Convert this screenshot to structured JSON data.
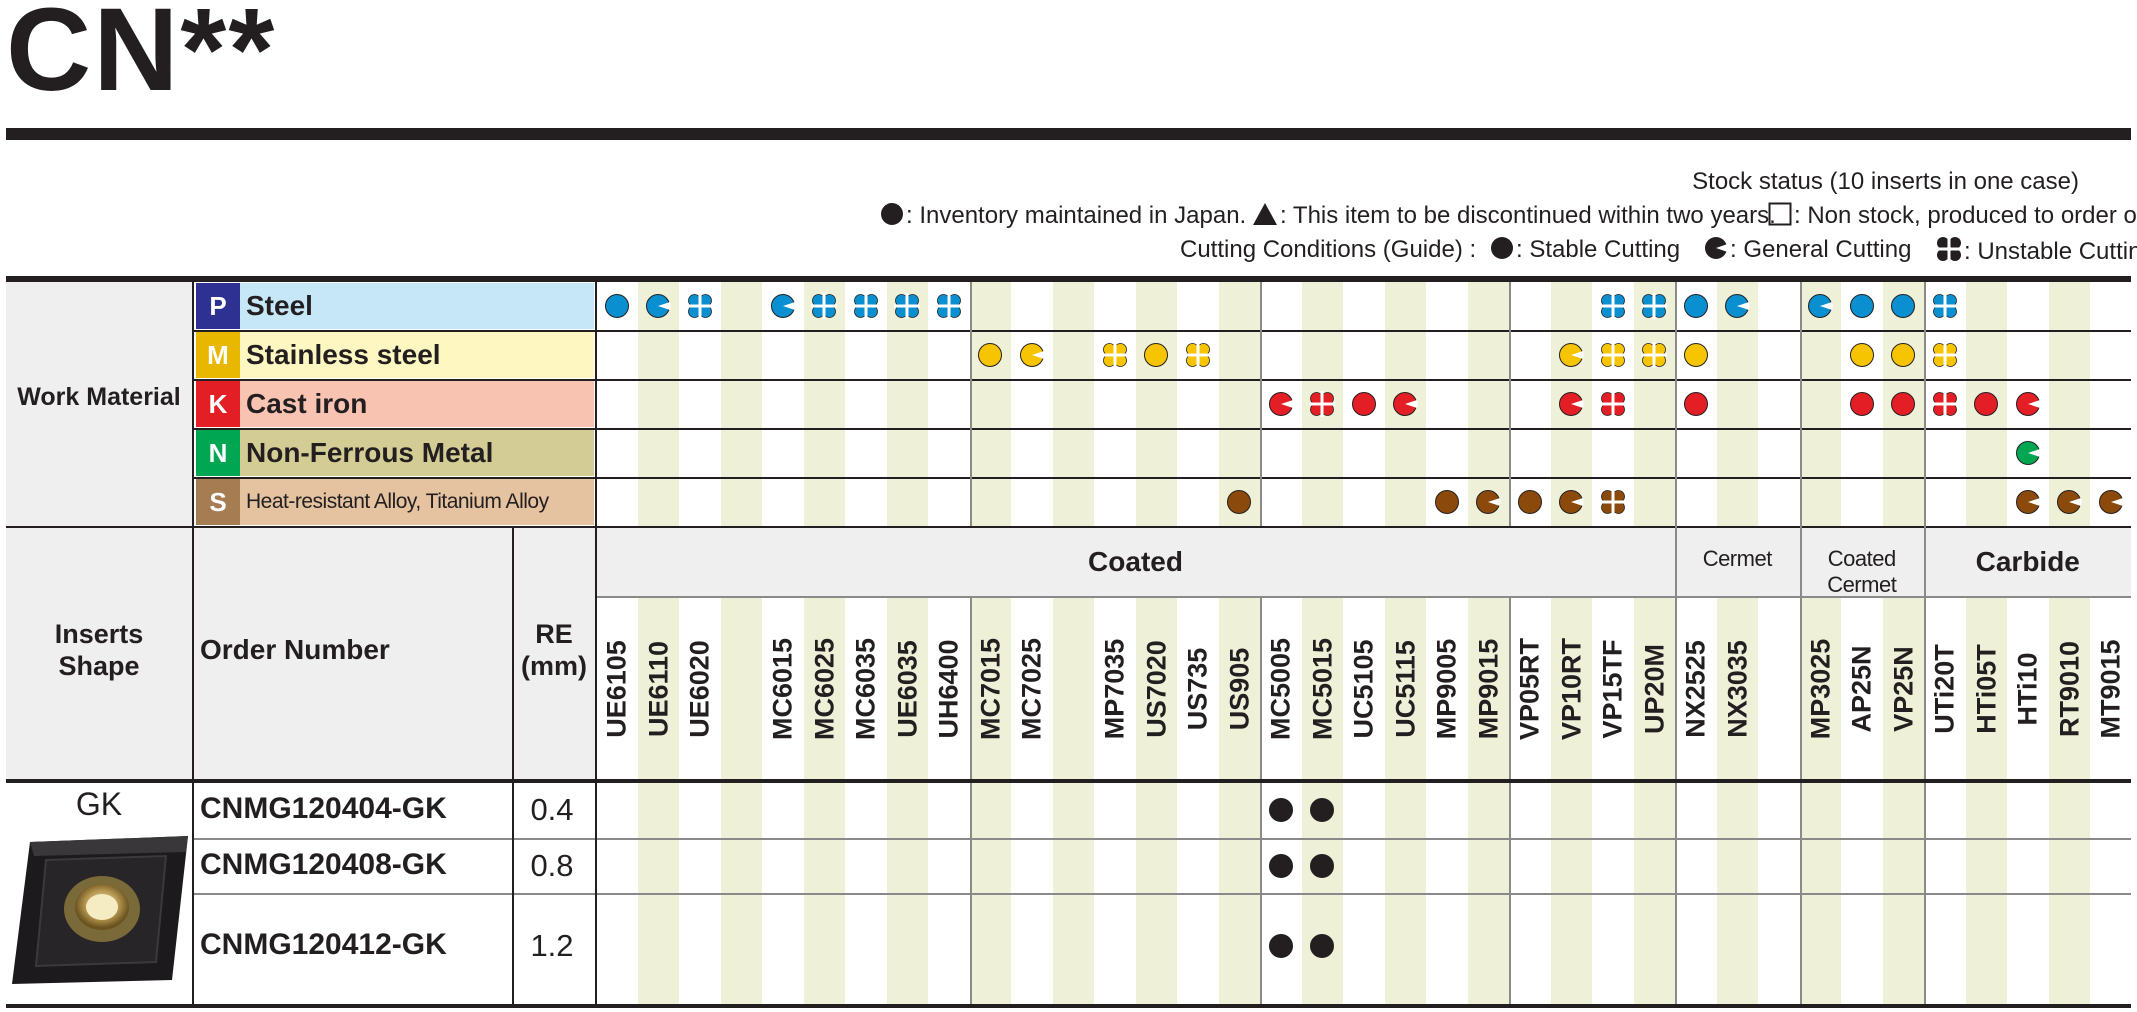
{
  "title": "CN**",
  "legend": {
    "stock_title": "Stock status (10 inserts in one case)",
    "stock_items": [
      {
        "symbol": "circle",
        "text": ": Inventory maintained in Japan."
      },
      {
        "symbol": "triangle",
        "text": ": This item to be discontinued within two years."
      },
      {
        "symbol": "square",
        "text": ": Non stock, produced to order only."
      }
    ],
    "cutting_label": "Cutting Conditions (Guide) :",
    "cutting_items": [
      {
        "symbol": "stable",
        "text": ": Stable Cutting"
      },
      {
        "symbol": "general",
        "text": ": General Cutting"
      },
      {
        "symbol": "unstable",
        "text": ": Unstable Cutting"
      }
    ]
  },
  "work_material": {
    "label": "Work Material",
    "categories": [
      {
        "letter": "P",
        "name": "Steel",
        "letter_color": "#2e3192",
        "bg_color": "#c5e7f7",
        "symbol_color": "#0a8fd0"
      },
      {
        "letter": "M",
        "name": "Stainless steel",
        "letter_color": "#e8b800",
        "bg_color": "#fff7c1",
        "symbol_color": "#f6c400"
      },
      {
        "letter": "K",
        "name": "Cast iron",
        "letter_color": "#e31e24",
        "bg_color": "#f9c3b1",
        "symbol_color": "#e31e24"
      },
      {
        "letter": "N",
        "name": "Non-Ferrous Metal",
        "letter_color": "#00a651",
        "bg_color": "#d3cd95",
        "symbol_color": "#00a651"
      },
      {
        "letter": "S",
        "name": "Heat-resistant Alloy, Titanium Alloy",
        "letter_color": "#a67c52",
        "bg_color": "#e5c2a0",
        "symbol_color": "#8b4a0c"
      }
    ]
  },
  "headers": {
    "inserts_shape": "Inserts Shape",
    "order_number": "Order Number",
    "re": "RE (mm)"
  },
  "groups": [
    {
      "name": "Coated"
    },
    {
      "name": "Cermet"
    },
    {
      "name": "Coated Cermet"
    },
    {
      "name": "Carbide"
    }
  ],
  "grades": [
    "UE6105",
    "UE6110",
    "UE6020",
    "",
    "MC6015",
    "MC6025",
    "MC6035",
    "UE6035",
    "UH6400",
    "MC7015",
    "MC7025",
    "",
    "MP7035",
    "US7020",
    "US735",
    "US905",
    "MC5005",
    "MC5015",
    "UC5105",
    "UC5115",
    "MP9005",
    "MP9015",
    "VP05RT",
    "VP10RT",
    "VP15TF",
    "UP20M",
    "NX2525",
    "NX3035",
    "",
    "MP3025",
    "AP25N",
    "VP25N",
    "UTi20T",
    "HTi05T",
    "HTi10",
    "RT9010",
    "MT9015"
  ],
  "applicability": {
    "P": {
      "0": "S",
      "1": "G",
      "2": "U",
      "4": "G",
      "5": "U",
      "6": "U",
      "7": "U",
      "8": "U",
      "24": "U",
      "25": "U",
      "26": "S",
      "27": "G",
      "29": "G",
      "30": "S",
      "31": "S",
      "32": "U"
    },
    "M": {
      "9": "S",
      "10": "G",
      "12": "U",
      "13": "S",
      "14": "U",
      "23": "G",
      "24": "U",
      "25": "U",
      "26": "S",
      "30": "S",
      "31": "S",
      "32": "U"
    },
    "K": {
      "16": "G",
      "17": "U",
      "18": "S",
      "19": "G",
      "23": "G",
      "24": "U",
      "26": "S",
      "30": "S",
      "31": "S",
      "32": "U",
      "33": "S",
      "34": "G"
    },
    "N": {
      "34": "G"
    },
    "S": {
      "15": "S",
      "20": "S",
      "21": "G",
      "22": "S",
      "23": "G",
      "24": "U",
      "34": "G",
      "35": "G",
      "36": "G"
    }
  },
  "shape": {
    "label": "GK",
    "image": "cnmg-insert-image"
  },
  "rows": [
    {
      "order": "CNMG120404-GK",
      "re": "0.4",
      "stock": [
        16,
        17
      ]
    },
    {
      "order": "CNMG120408-GK",
      "re": "0.8",
      "stock": [
        16,
        17
      ]
    },
    {
      "order": "CNMG120412-GK",
      "re": "1.2",
      "stock": [
        16,
        17
      ]
    }
  ]
}
